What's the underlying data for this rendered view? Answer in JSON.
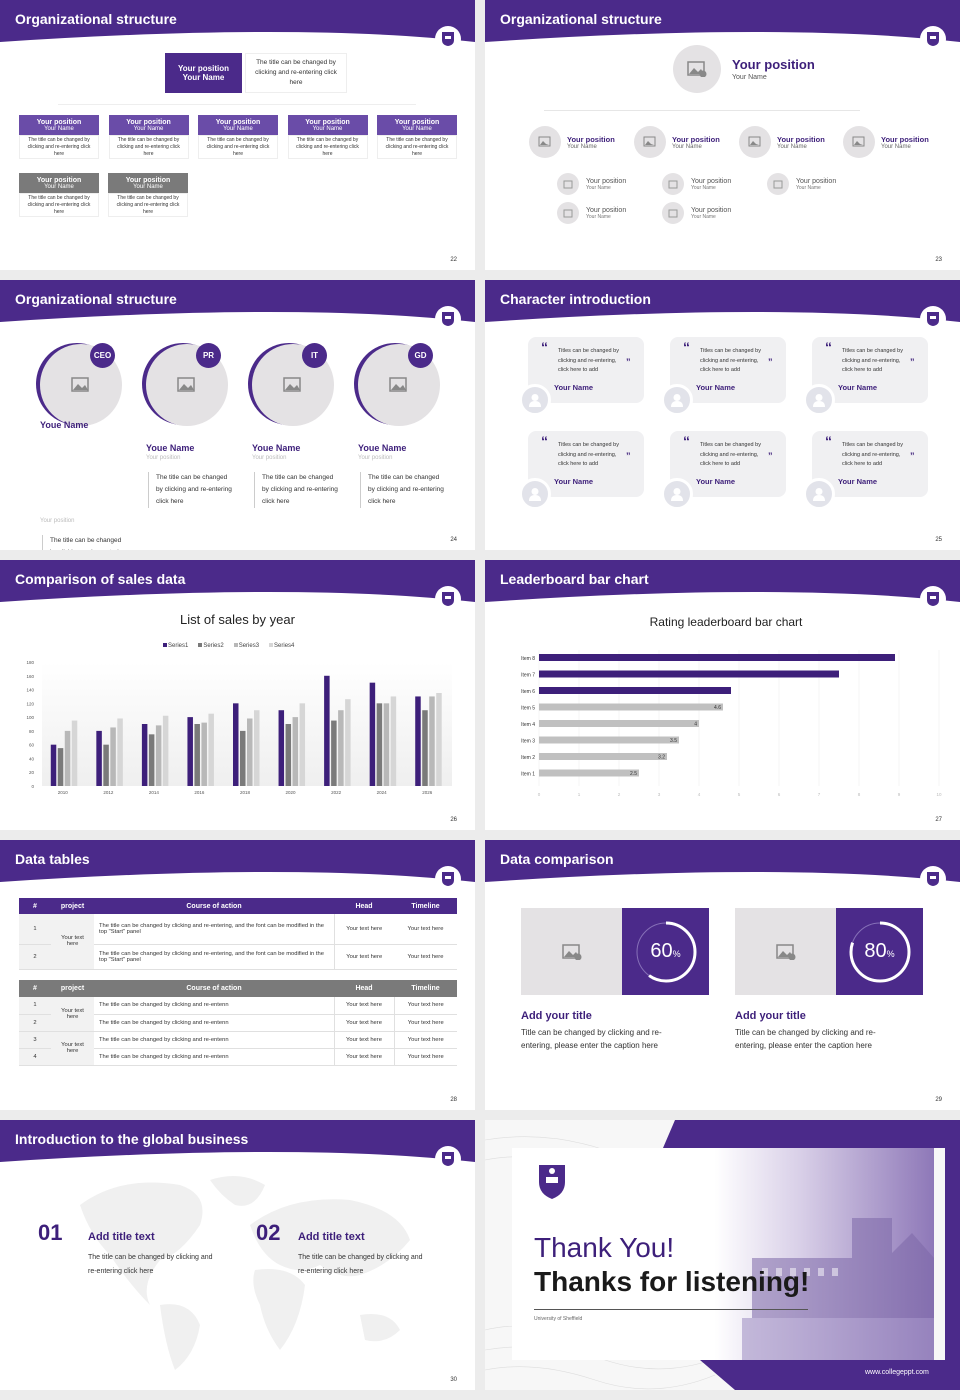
{
  "colors": {
    "accent": "#4b2a8a",
    "accent_light": "#6a4ca8",
    "gray_dark": "#7a7a7a",
    "gray": "#a8a8a8",
    "gray_light": "#d0d0d0",
    "placeholder": "#e4e2e4"
  },
  "slides": [
    {
      "page": "22",
      "title": "Organizational structure",
      "top": {
        "position": "Your position",
        "name": "Your Name",
        "desc": "The title can be changed by clicking and re-entering click here"
      },
      "row1": [
        {
          "position": "Your position",
          "name": "Your Name",
          "desc": "The title can be changed by clicking and re-entering click here"
        },
        {
          "position": "Your position",
          "name": "Your Name",
          "desc": "The title can be changed by clicking and re-entering click here"
        },
        {
          "position": "Your position",
          "name": "Your Name",
          "desc": "The title can be changed by clicking and re-entering click here"
        },
        {
          "position": "Your position",
          "name": "Your Name",
          "desc": "The title can be changed by clicking and re-entering click here"
        },
        {
          "position": "Your position",
          "name": "Your Name",
          "desc": "The title can be changed by clicking and re-entering click here"
        }
      ],
      "row2": [
        {
          "position": "Your position",
          "name": "Your Name",
          "desc": "The title can be changed by clicking and re-entering click here"
        },
        {
          "position": "Your position",
          "name": "Your Name",
          "desc": "The title can be changed by clicking and re-entering click here"
        }
      ]
    },
    {
      "page": "23",
      "title": "Organizational structure",
      "top": {
        "position": "Your position",
        "name": "Your Name"
      },
      "level2": [
        {
          "position": "Your position",
          "name": "Your Name"
        },
        {
          "position": "Your position",
          "name": "Your Name"
        },
        {
          "position": "Your position",
          "name": "Your Name"
        },
        {
          "position": "Your position",
          "name": "Your Name"
        }
      ],
      "level3": [
        {
          "position": "Your position",
          "name": "Your Name"
        },
        {
          "position": "Your position",
          "name": "Your Name"
        },
        {
          "position": "Your position",
          "name": "Your Name"
        },
        {
          "position": "Your position",
          "name": "Your Name"
        },
        {
          "position": "Your position",
          "name": "Your Name"
        }
      ]
    },
    {
      "page": "24",
      "title": "Organizational structure",
      "members": [
        {
          "badge": "CEO",
          "name": "Youe Name",
          "position": "Your position",
          "desc": "The title can be changed by clicking and re-entering click here"
        },
        {
          "badge": "PR",
          "name": "Youe Name",
          "position": "Your position",
          "desc": "The title can be changed by clicking and re-entering click here"
        },
        {
          "badge": "IT",
          "name": "Youe Name",
          "position": "Your position",
          "desc": "The title can be changed by clicking and re-entering click here"
        },
        {
          "badge": "GD",
          "name": "Youe Name",
          "position": "Your position",
          "desc": "The title can be changed by clicking and re-entering click here"
        }
      ]
    },
    {
      "page": "25",
      "title": "Character introduction",
      "cards": [
        {
          "quote": "Titles can be changed by clicking and re-entering, click here to add",
          "name": "Your Name"
        },
        {
          "quote": "Titles can be changed by clicking and re-entering, click here to add",
          "name": "Your Name"
        },
        {
          "quote": "Titles can be changed by clicking and re-entering, click here to add",
          "name": "Your Name"
        },
        {
          "quote": "Titles can be changed by clicking and re-entering, click here to add",
          "name": "Your Name"
        },
        {
          "quote": "Titles can be changed by clicking and re-entering, click here to add",
          "name": "Your Name"
        },
        {
          "quote": "Titles can be changed by clicking and re-entering, click here to add",
          "name": "Your Name"
        }
      ]
    },
    {
      "page": "26",
      "title": "Comparison of sales data"
    },
    {
      "page": "27",
      "title": "Leaderboard bar chart"
    },
    {
      "page": "28",
      "title": "Data tables",
      "table1": {
        "headers": [
          "#",
          "project",
          "Course of action",
          "Head",
          "Timeline"
        ],
        "project": "Your text here",
        "rows": [
          {
            "num": "1",
            "action": "The title can be changed by clicking and re-entering, and the font can be modified in the top \"Start\" panel",
            "head": "Your text here",
            "timeline": "Your text here"
          },
          {
            "num": "2",
            "action": "The title can be changed by clicking and re-entering, and the font can be modified in the top \"Start\" panel",
            "head": "Your text here",
            "timeline": "Your text here"
          }
        ]
      },
      "table2": {
        "headers": [
          "#",
          "project",
          "Course of action",
          "Head",
          "Timeline"
        ],
        "projects": [
          "Your text here",
          "Your text here"
        ],
        "rows": [
          {
            "num": "1",
            "action": "The title can be changed by clicking and re-entenn",
            "head": "Your text here",
            "timeline": "Your text here"
          },
          {
            "num": "2",
            "action": "The title can be changed by clicking and re-entenn",
            "head": "Your text here",
            "timeline": "Your text here"
          },
          {
            "num": "3",
            "action": "The title can be changed by clicking and re-entenn",
            "head": "Your text here",
            "timeline": "Your text here"
          },
          {
            "num": "4",
            "action": "The title can be changed by clicking and re-entenn",
            "head": "Your text here",
            "timeline": "Your text here"
          }
        ]
      }
    },
    {
      "page": "29",
      "title": "Data comparison",
      "items": [
        {
          "percent": "60",
          "unit": "%",
          "title": "Add your title",
          "desc": "Title can be changed by clicking and re-entering, please enter the caption here"
        },
        {
          "percent": "80",
          "unit": "%",
          "title": "Add your title",
          "desc": "Title can be changed by clicking and re-entering, please enter the caption here"
        }
      ]
    },
    {
      "page": "30",
      "title": "Introduction to the global business",
      "items": [
        {
          "num": "01",
          "title": "Add title text",
          "desc": "The title can be changed by clicking and re-entering click here"
        },
        {
          "num": "02",
          "title": "Add title text",
          "desc": "The title can be changed by clicking and re-entering click here"
        }
      ]
    },
    {
      "thanks": "Thank You!",
      "subtitle": "Thanks for listening!",
      "university": "University of Sheffield",
      "url": "www.collegeppt.com"
    }
  ],
  "chart_data": [
    {
      "type": "bar",
      "title": "List of sales by year",
      "categories": [
        "2010",
        "2012",
        "2014",
        "2016",
        "2018",
        "2020",
        "2022",
        "2024",
        "2026"
      ],
      "series": [
        {
          "name": "Series1",
          "color": "#3d1f7a",
          "values": [
            60,
            80,
            90,
            100,
            120,
            110,
            160,
            150,
            130
          ]
        },
        {
          "name": "Series2",
          "color": "#7a7a7a",
          "values": [
            55,
            60,
            75,
            90,
            80,
            90,
            95,
            120,
            110
          ]
        },
        {
          "name": "Series3",
          "color": "#b8b8b8",
          "values": [
            80,
            85,
            88,
            92,
            98,
            100,
            110,
            120,
            130
          ]
        },
        {
          "name": "Series4",
          "color": "#d6d6d6",
          "values": [
            95,
            98,
            102,
            105,
            110,
            120,
            126,
            130,
            135
          ]
        }
      ],
      "yticks": [
        "0",
        "20",
        "40",
        "60",
        "80",
        "100",
        "120",
        "140",
        "160",
        "180"
      ],
      "ylim": [
        0,
        180
      ],
      "legend_position": "top",
      "xlabel": "",
      "ylabel": ""
    },
    {
      "type": "bar",
      "orientation": "horizontal",
      "title": "Rating leaderboard bar chart",
      "categories": [
        "Item 8",
        "Item 7",
        "Item 6",
        "Item 5",
        "Item 4",
        "Item 3",
        "Item 2",
        "Item 1"
      ],
      "values": [
        8.9,
        7.5,
        4.8,
        4.6,
        4,
        3.5,
        3.2,
        2.5
      ],
      "labels": [
        "",
        "",
        "",
        "4.6",
        "4",
        "3.5",
        "3.2",
        "2.5"
      ],
      "colors": [
        "#3d1f7a",
        "#3d1f7a",
        "#3d1f7a",
        "#c0c0c0",
        "#c0c0c0",
        "#c0c0c0",
        "#c0c0c0",
        "#c0c0c0"
      ],
      "xticks": [
        "0",
        "1",
        "2",
        "3",
        "4",
        "5",
        "6",
        "7",
        "8",
        "9",
        "10"
      ],
      "xlim": [
        0,
        10
      ],
      "grid": true
    }
  ]
}
